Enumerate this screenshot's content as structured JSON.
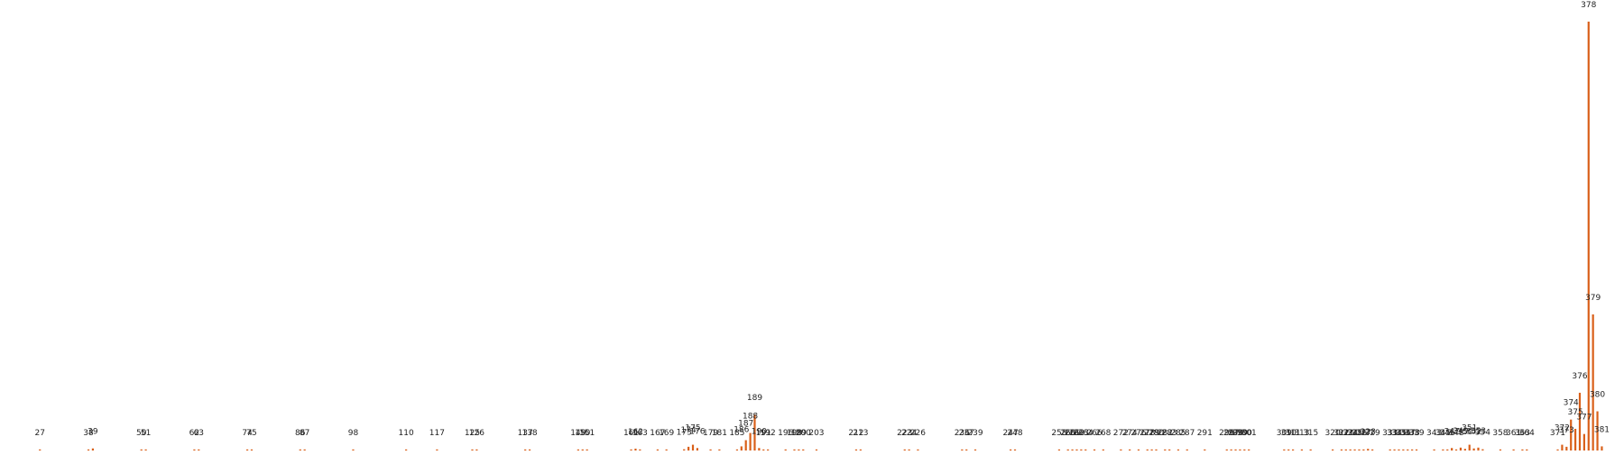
{
  "chart_data": {
    "type": "bar",
    "title": "",
    "xlabel": "",
    "ylabel": "",
    "grid": false,
    "legend": "none",
    "bar_color": "#d9601a",
    "x_range": [
      20,
      385
    ],
    "ylim": [
      0,
      2080
    ],
    "points": [
      {
        "x": 27,
        "v": 1
      },
      {
        "x": 38,
        "v": 1
      },
      {
        "x": 39,
        "v": 10
      },
      {
        "x": 50,
        "v": 1
      },
      {
        "x": 51,
        "v": 1
      },
      {
        "x": 62,
        "v": 1
      },
      {
        "x": 63,
        "v": 5
      },
      {
        "x": 74,
        "v": 1
      },
      {
        "x": 75,
        "v": 1
      },
      {
        "x": 86,
        "v": 1
      },
      {
        "x": 87,
        "v": 1
      },
      {
        "x": 98,
        "v": 1
      },
      {
        "x": 110,
        "v": 1
      },
      {
        "x": 117,
        "v": 1
      },
      {
        "x": 125,
        "v": 1
      },
      {
        "x": 126,
        "v": 1
      },
      {
        "x": 137,
        "v": 1
      },
      {
        "x": 138,
        "v": 1
      },
      {
        "x": 149,
        "v": 1
      },
      {
        "x": 150,
        "v": 1
      },
      {
        "x": 151,
        "v": 1
      },
      {
        "x": 161,
        "v": 1
      },
      {
        "x": 162,
        "v": 9
      },
      {
        "x": 163,
        "v": 1
      },
      {
        "x": 167,
        "v": 1
      },
      {
        "x": 169,
        "v": 1
      },
      {
        "x": 173,
        "v": 6
      },
      {
        "x": 174,
        "v": 18
      },
      {
        "x": 175,
        "v": 28
      },
      {
        "x": 176,
        "v": 12
      },
      {
        "x": 179,
        "v": 1
      },
      {
        "x": 181,
        "v": 1
      },
      {
        "x": 185,
        "v": 4
      },
      {
        "x": 186,
        "v": 20
      },
      {
        "x": 187,
        "v": 50
      },
      {
        "x": 188,
        "v": 85
      },
      {
        "x": 189,
        "v": 175
      },
      {
        "x": 190,
        "v": 12
      },
      {
        "x": 191,
        "v": 2
      },
      {
        "x": 192,
        "v": 1
      },
      {
        "x": 196,
        "v": 1
      },
      {
        "x": 198,
        "v": 1
      },
      {
        "x": 199,
        "v": 1
      },
      {
        "x": 200,
        "v": 1
      },
      {
        "x": 203,
        "v": 1
      },
      {
        "x": 212,
        "v": 1
      },
      {
        "x": 213,
        "v": 1
      },
      {
        "x": 223,
        "v": 1
      },
      {
        "x": 224,
        "v": 1
      },
      {
        "x": 226,
        "v": 1
      },
      {
        "x": 236,
        "v": 1
      },
      {
        "x": 237,
        "v": 1
      },
      {
        "x": 239,
        "v": 1
      },
      {
        "x": 247,
        "v": 1
      },
      {
        "x": 248,
        "v": 1
      },
      {
        "x": 258,
        "v": 1
      },
      {
        "x": 260,
        "v": 1
      },
      {
        "x": 261,
        "v": 1
      },
      {
        "x": 262,
        "v": 1
      },
      {
        "x": 263,
        "v": 1
      },
      {
        "x": 264,
        "v": 1
      },
      {
        "x": 266,
        "v": 1
      },
      {
        "x": 268,
        "v": 1
      },
      {
        "x": 272,
        "v": 1
      },
      {
        "x": 274,
        "v": 1
      },
      {
        "x": 276,
        "v": 1
      },
      {
        "x": 278,
        "v": 1
      },
      {
        "x": 279,
        "v": 1
      },
      {
        "x": 280,
        "v": 1
      },
      {
        "x": 282,
        "v": 1
      },
      {
        "x": 283,
        "v": 1
      },
      {
        "x": 285,
        "v": 1
      },
      {
        "x": 287,
        "v": 1
      },
      {
        "x": 291,
        "v": 1
      },
      {
        "x": 296,
        "v": 1
      },
      {
        "x": 297,
        "v": 1
      },
      {
        "x": 298,
        "v": 1
      },
      {
        "x": 299,
        "v": 1
      },
      {
        "x": 300,
        "v": 1
      },
      {
        "x": 301,
        "v": 1
      },
      {
        "x": 309,
        "v": 1
      },
      {
        "x": 310,
        "v": 5
      },
      {
        "x": 311,
        "v": 1
      },
      {
        "x": 313,
        "v": 1
      },
      {
        "x": 315,
        "v": 1
      },
      {
        "x": 320,
        "v": 1
      },
      {
        "x": 322,
        "v": 1
      },
      {
        "x": 323,
        "v": 1
      },
      {
        "x": 324,
        "v": 1
      },
      {
        "x": 325,
        "v": 1
      },
      {
        "x": 326,
        "v": 1
      },
      {
        "x": 327,
        "v": 1
      },
      {
        "x": 328,
        "v": 8
      },
      {
        "x": 329,
        "v": 1
      },
      {
        "x": 333,
        "v": 1
      },
      {
        "x": 334,
        "v": 1
      },
      {
        "x": 335,
        "v": 1
      },
      {
        "x": 336,
        "v": 1
      },
      {
        "x": 337,
        "v": 1
      },
      {
        "x": 338,
        "v": 1
      },
      {
        "x": 339,
        "v": 1
      },
      {
        "x": 343,
        "v": 1
      },
      {
        "x": 345,
        "v": 1
      },
      {
        "x": 346,
        "v": 1
      },
      {
        "x": 347,
        "v": 12
      },
      {
        "x": 348,
        "v": 1
      },
      {
        "x": 349,
        "v": 14
      },
      {
        "x": 350,
        "v": 8
      },
      {
        "x": 351,
        "v": 28
      },
      {
        "x": 352,
        "v": 10
      },
      {
        "x": 353,
        "v": 14
      },
      {
        "x": 354,
        "v": 6
      },
      {
        "x": 358,
        "v": 1
      },
      {
        "x": 361,
        "v": 1
      },
      {
        "x": 363,
        "v": 1
      },
      {
        "x": 364,
        "v": 1
      },
      {
        "x": 371,
        "v": 1
      },
      {
        "x": 372,
        "v": 28
      },
      {
        "x": 373,
        "v": 18
      },
      {
        "x": 374,
        "v": 150
      },
      {
        "x": 375,
        "v": 105
      },
      {
        "x": 376,
        "v": 280
      },
      {
        "x": 377,
        "v": 80
      },
      {
        "x": 378,
        "v": 2080
      },
      {
        "x": 379,
        "v": 660
      },
      {
        "x": 380,
        "v": 190
      },
      {
        "x": 381,
        "v": 20
      }
    ]
  }
}
